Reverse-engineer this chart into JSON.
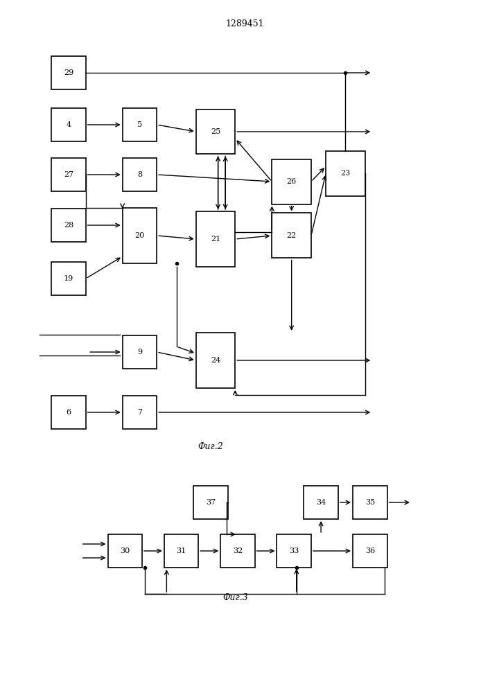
{
  "title": "1289451",
  "fig2_label": "Фиг.2",
  "fig3_label": "Фиг.3",
  "background": "#ffffff",
  "box_color": "#ffffff",
  "line_color": "#000000"
}
